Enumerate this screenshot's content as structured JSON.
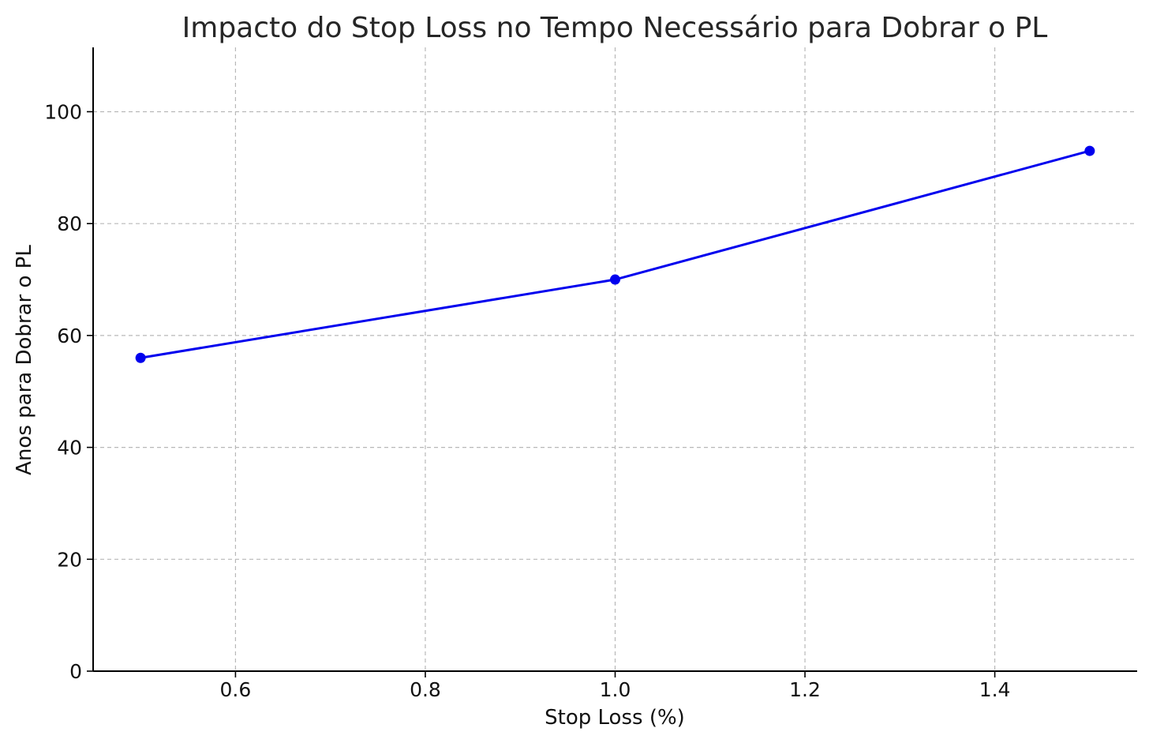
{
  "chart_data": {
    "type": "line",
    "title": "Impacto do Stop Loss no Tempo Necessário para Dobrar o PL",
    "xlabel": "Stop Loss (%)",
    "ylabel": "Anos para Dobrar o PL",
    "x": [
      0.5,
      1.0,
      1.5
    ],
    "series": [
      {
        "values": [
          56,
          70,
          93
        ],
        "color": "#0000ee",
        "marker": "circle"
      }
    ],
    "xlim": [
      0.45,
      1.55
    ],
    "ylim": [
      0,
      111.5
    ],
    "x_ticks": [
      0.6,
      0.8,
      1.0,
      1.2,
      1.4
    ],
    "x_tick_labels": [
      "0.6",
      "0.8",
      "1.0",
      "1.2",
      "1.4"
    ],
    "y_ticks": [
      0,
      20,
      40,
      60,
      80,
      100
    ],
    "y_tick_labels": [
      "0",
      "20",
      "40",
      "60",
      "80",
      "100"
    ],
    "grid": true,
    "legend": "none"
  }
}
